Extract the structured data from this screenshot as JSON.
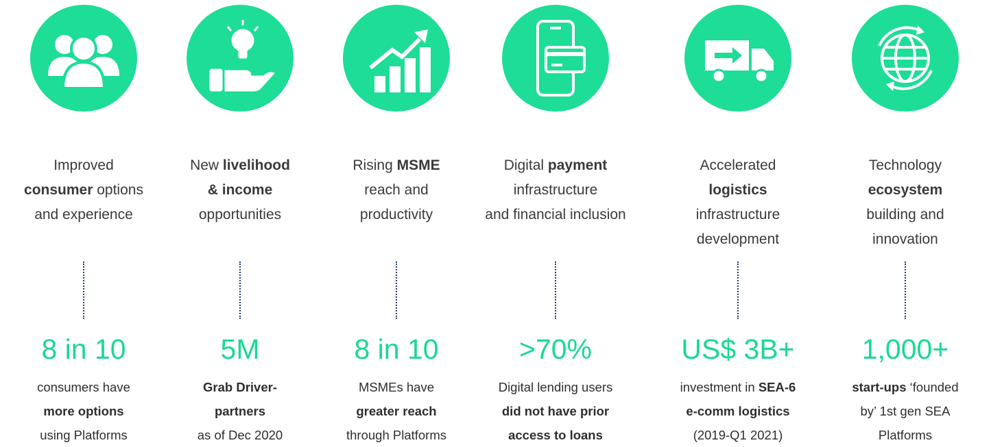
{
  "columns": [
    {
      "heading": [
        [
          {
            "text": "Improved"
          }
        ],
        [
          {
            "text": "consumer",
            "bold": true
          },
          {
            "text": " options"
          }
        ],
        [
          {
            "text": "and experience"
          }
        ]
      ],
      "stat": "8 in 10",
      "description": [
        [
          {
            "text": "consumers have"
          }
        ],
        [
          {
            "text": "more options",
            "bold": true
          }
        ],
        [
          {
            "text": "using Platforms"
          }
        ]
      ]
    },
    {
      "heading": [
        [
          {
            "text": "New "
          },
          {
            "text": "livelihood",
            "bold": true
          }
        ],
        [
          {
            "text": "& income",
            "bold": true
          }
        ],
        [
          {
            "text": "opportunities"
          }
        ]
      ],
      "stat": "5M",
      "description": [
        [
          {
            "text": "Grab Driver-",
            "bold": true
          }
        ],
        [
          {
            "text": "partners",
            "bold": true
          }
        ],
        [
          {
            "text": "as of Dec 2020"
          }
        ]
      ]
    },
    {
      "heading": [
        [
          {
            "text": "Rising "
          },
          {
            "text": "MSME",
            "bold": true
          }
        ],
        [
          {
            "text": "reach and"
          }
        ],
        [
          {
            "text": "productivity"
          }
        ]
      ],
      "stat": "8 in 10",
      "description": [
        [
          {
            "text": "MSMEs have"
          }
        ],
        [
          {
            "text": "greater reach",
            "bold": true
          }
        ],
        [
          {
            "text": "through Platforms"
          }
        ]
      ]
    },
    {
      "heading": [
        [
          {
            "text": "Digital "
          },
          {
            "text": "payment",
            "bold": true
          }
        ],
        [
          {
            "text": "infrastructure"
          }
        ],
        [
          {
            "text": "and financial inclusion"
          }
        ]
      ],
      "stat": ">70%",
      "description": [
        [
          {
            "text": "Digital lending users"
          }
        ],
        [
          {
            "text": "did not have prior",
            "bold": true
          }
        ],
        [
          {
            "text": "access to loans",
            "bold": true
          }
        ]
      ]
    },
    {
      "heading": [
        [
          {
            "text": "Accelerated"
          }
        ],
        [
          {
            "text": "logistics",
            "bold": true
          }
        ],
        [
          {
            "text": "infrastructure"
          }
        ],
        [
          {
            "text": "development"
          }
        ]
      ],
      "stat": "US$ 3B+",
      "description": [
        [
          {
            "text": "investment in "
          },
          {
            "text": "SEA-6",
            "bold": true
          }
        ],
        [
          {
            "text": "e-comm logistics",
            "bold": true
          }
        ],
        [
          {
            "text": "(2019-Q1 2021)"
          }
        ]
      ]
    },
    {
      "heading": [
        [
          {
            "text": "Technology"
          }
        ],
        [
          {
            "text": "ecosystem",
            "bold": true
          }
        ],
        [
          {
            "text": "building and"
          }
        ],
        [
          {
            "text": "innovation"
          }
        ]
      ],
      "stat": "1,000+",
      "description": [
        [
          {
            "text": "start-ups",
            "bold": true
          },
          {
            "text": " ‘founded"
          }
        ],
        [
          {
            "text": "by’ 1st gen SEA"
          }
        ],
        [
          {
            "text": "Platforms"
          }
        ]
      ]
    }
  ]
}
